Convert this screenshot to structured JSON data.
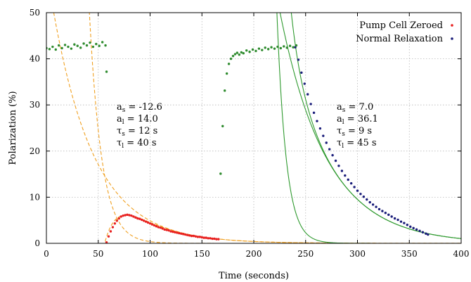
{
  "chart_data": {
    "type": "scatter",
    "xlabel": "Time (seconds)",
    "ylabel": "Polarization (%)",
    "xlim": [
      0,
      400
    ],
    "ylim": [
      0,
      50
    ],
    "xticks": [
      "0",
      "50",
      "100",
      "150",
      "200",
      "250",
      "300",
      "350",
      "400"
    ],
    "yticks": [
      "0",
      "10",
      "20",
      "30",
      "40",
      "50"
    ],
    "grid": true,
    "legend_position": "top-right",
    "series": [
      {
        "name": "Pump Cell Zeroed",
        "kind": "points",
        "color": "#e8201f",
        "x": [
          58,
          60,
          62,
          64,
          66,
          68,
          70,
          72,
          74,
          76,
          78,
          80,
          82,
          84,
          86,
          88,
          90,
          92,
          94,
          96,
          98,
          100,
          102,
          104,
          106,
          108,
          110,
          112,
          114,
          116,
          118,
          120,
          122,
          124,
          126,
          128,
          130,
          132,
          134,
          136,
          138,
          140,
          142,
          144,
          146,
          148,
          150,
          152,
          154,
          156,
          158,
          160,
          162,
          164,
          166
        ],
        "y": [
          0.2,
          1.5,
          2.6,
          3.5,
          4.3,
          4.9,
          5.4,
          5.8,
          6.0,
          6.1,
          6.2,
          6.1,
          6.0,
          5.8,
          5.6,
          5.4,
          5.3,
          5.1,
          4.9,
          4.7,
          4.5,
          4.3,
          4.1,
          3.9,
          3.7,
          3.5,
          3.4,
          3.2,
          3.0,
          2.9,
          2.8,
          2.6,
          2.5,
          2.4,
          2.3,
          2.2,
          2.1,
          2.0,
          1.9,
          1.8,
          1.7,
          1.6,
          1.6,
          1.5,
          1.4,
          1.4,
          1.3,
          1.2,
          1.2,
          1.1,
          1.1,
          1.0,
          1.0,
          0.9,
          0.9
        ]
      },
      {
        "name": "Normal Relaxation",
        "kind": "points",
        "color": "#1a1d7a",
        "x": [
          240,
          243,
          246,
          249,
          252,
          255,
          258,
          261,
          264,
          267,
          270,
          273,
          276,
          279,
          282,
          285,
          288,
          291,
          294,
          297,
          300,
          303,
          306,
          309,
          312,
          315,
          318,
          321,
          324,
          327,
          330,
          333,
          336,
          339,
          342,
          345,
          348,
          351,
          354,
          357,
          360,
          363,
          366,
          368
        ],
        "y": [
          42.5,
          39.8,
          37.0,
          34.6,
          32.3,
          30.2,
          28.3,
          26.5,
          24.9,
          23.3,
          21.8,
          20.4,
          19.1,
          17.9,
          16.8,
          15.7,
          14.7,
          13.8,
          13.0,
          12.2,
          11.4,
          10.7,
          10.1,
          9.5,
          8.9,
          8.4,
          7.9,
          7.4,
          7.0,
          6.6,
          6.2,
          5.8,
          5.4,
          5.1,
          4.7,
          4.4,
          4.0,
          3.6,
          3.3,
          3.0,
          2.7,
          2.4,
          2.1,
          1.9
        ]
      },
      {
        "kind": "points",
        "color": "#2e8b2e",
        "x": [
          0,
          3,
          6,
          9,
          12,
          15,
          18,
          21,
          24,
          27,
          30,
          33,
          36,
          39,
          42,
          45,
          48,
          51,
          54,
          57,
          58,
          168,
          170,
          172,
          174,
          176,
          178,
          180,
          182,
          184,
          186,
          188,
          190,
          193,
          196,
          199,
          202,
          205,
          208,
          211,
          214,
          217,
          220,
          223,
          226,
          229,
          232,
          235,
          238,
          241
        ],
        "y": [
          42.3,
          42.1,
          42.6,
          42.0,
          42.9,
          42.3,
          43.0,
          42.6,
          42.2,
          43.1,
          42.8,
          42.4,
          43.3,
          42.9,
          43.5,
          42.6,
          43.2,
          42.8,
          43.6,
          42.9,
          37.2,
          15.1,
          25.4,
          33.1,
          36.8,
          38.9,
          40.0,
          40.6,
          41.0,
          41.3,
          40.9,
          41.4,
          41.2,
          41.8,
          41.5,
          42.0,
          41.7,
          42.2,
          41.9,
          42.4,
          42.1,
          42.5,
          42.2,
          42.6,
          42.3,
          42.7,
          42.4,
          42.8,
          42.5,
          42.9
        ]
      },
      {
        "kind": "curve",
        "style": "dashed",
        "color": "#f0a020",
        "formula": "a_s*exp(-(t-t0)/tau_s)+a_l*exp(-(t-t0)/tau_l), t0=58, a_s=-12.6, a_l=14.0, tau_s=12, tau_l=40"
      },
      {
        "kind": "curve",
        "style": "solid",
        "color": "#2f9a2f",
        "formula": "a_s*exp(-(t-t0)/tau_s)+a_l*exp(-(t-t0)/tau_l), t0=240, a_s=7.0, a_l=36.1, tau_s=9, tau_l=45"
      }
    ],
    "annotations": [
      {
        "lines": [
          {
            "base": "a",
            "sub": "s",
            "rest": " = -12.6"
          },
          {
            "base": "a",
            "sub": "l",
            "rest": " = 14.0"
          },
          {
            "base": "τ",
            "sub": "s",
            "rest": " = 12 s"
          },
          {
            "base": "τ",
            "sub": "l",
            "rest": " = 40 s"
          }
        ]
      },
      {
        "lines": [
          {
            "base": "a",
            "sub": "s",
            "rest": " = 7.0"
          },
          {
            "base": "a",
            "sub": "l",
            "rest": " = 36.1"
          },
          {
            "base": "τ",
            "sub": "s",
            "rest": " = 9 s"
          },
          {
            "base": "τ",
            "sub": "l",
            "rest": " = 45 s"
          }
        ]
      }
    ]
  }
}
